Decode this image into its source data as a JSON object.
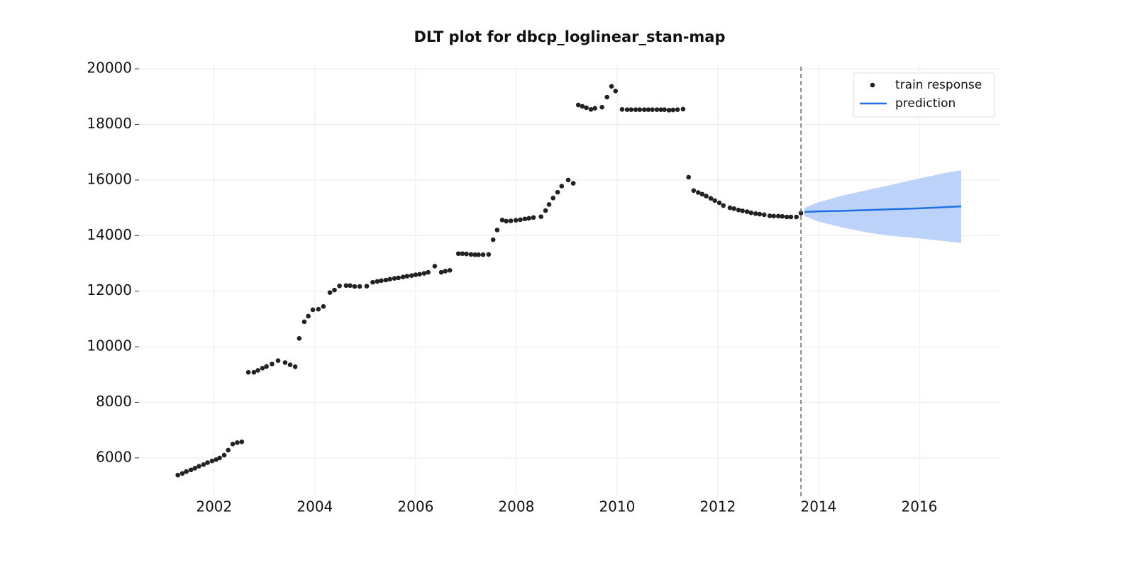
{
  "chart_data": {
    "type": "line",
    "title": "DLT plot for dbcp_loglinear_stan-map",
    "xlim": [
      2000.51,
      2017.62
    ],
    "ylim": [
      4620,
      20180
    ],
    "xticks": [
      2002,
      2004,
      2006,
      2008,
      2010,
      2012,
      2014,
      2016
    ],
    "yticks": [
      6000,
      8000,
      10000,
      12000,
      14000,
      16000,
      18000,
      20000
    ],
    "grid": true,
    "legend": "upper right",
    "vline": 2013.65,
    "series": [
      {
        "name": "train response",
        "type": "scatter",
        "color": "#222222",
        "x": [
          2001.28,
          2001.37,
          2001.45,
          2001.54,
          2001.62,
          2001.7,
          2001.79,
          2001.87,
          2001.96,
          2002.04,
          2002.11,
          2002.2,
          2002.28,
          2002.37,
          2002.46,
          2002.55,
          2002.68,
          2002.79,
          2002.87,
          2002.96,
          2003.04,
          2003.15,
          2003.27,
          2003.41,
          2003.51,
          2003.61,
          2003.69,
          2003.79,
          2003.87,
          2003.96,
          2004.07,
          2004.17,
          2004.3,
          2004.39,
          2004.49,
          2004.62,
          2004.7,
          2004.79,
          2004.89,
          2005.03,
          2005.15,
          2005.24,
          2005.32,
          2005.41,
          2005.49,
          2005.58,
          2005.66,
          2005.75,
          2005.83,
          2005.92,
          2006.0,
          2006.08,
          2006.17,
          2006.25,
          2006.38,
          2006.51,
          2006.59,
          2006.68,
          2006.85,
          2006.93,
          2007.01,
          2007.1,
          2007.18,
          2007.25,
          2007.34,
          2007.45,
          2007.54,
          2007.62,
          2007.72,
          2007.8,
          2007.89,
          2007.99,
          2008.08,
          2008.17,
          2008.25,
          2008.34,
          2008.49,
          2008.58,
          2008.65,
          2008.73,
          2008.82,
          2008.9,
          2009.03,
          2009.13,
          2009.23,
          2009.31,
          2009.39,
          2009.48,
          2009.56,
          2009.7,
          2009.8,
          2009.89,
          2009.97,
          2010.1,
          2010.2,
          2010.28,
          2010.37,
          2010.45,
          2010.54,
          2010.62,
          2010.7,
          2010.79,
          2010.87,
          2010.94,
          2011.03,
          2011.11,
          2011.2,
          2011.31,
          2011.42,
          2011.52,
          2011.61,
          2011.69,
          2011.77,
          2011.86,
          2011.94,
          2012.03,
          2012.11,
          2012.24,
          2012.32,
          2012.41,
          2012.49,
          2012.58,
          2012.66,
          2012.75,
          2012.83,
          2012.92,
          2013.03,
          2013.11,
          2013.2,
          2013.28,
          2013.37,
          2013.45,
          2013.56,
          2013.65
        ],
        "values": [
          5380,
          5440,
          5510,
          5570,
          5630,
          5700,
          5760,
          5830,
          5890,
          5940,
          6000,
          6100,
          6280,
          6500,
          6550,
          6580,
          9080,
          9080,
          9150,
          9230,
          9290,
          9380,
          9500,
          9430,
          9350,
          9280,
          10300,
          10900,
          11100,
          11330,
          11350,
          11450,
          11950,
          12040,
          12190,
          12200,
          12200,
          12170,
          12170,
          12180,
          12320,
          12350,
          12380,
          12400,
          12430,
          12460,
          12480,
          12510,
          12540,
          12560,
          12590,
          12610,
          12640,
          12680,
          12900,
          12680,
          12720,
          12750,
          13350,
          13350,
          13340,
          13320,
          13310,
          13310,
          13310,
          13320,
          13850,
          14200,
          14560,
          14520,
          14530,
          14550,
          14570,
          14600,
          14620,
          14650,
          14680,
          14900,
          15120,
          15350,
          15560,
          15780,
          16000,
          15880,
          18700,
          18650,
          18600,
          18540,
          18580,
          18620,
          18980,
          19370,
          19200,
          18540,
          18530,
          18530,
          18530,
          18530,
          18530,
          18530,
          18530,
          18530,
          18530,
          18530,
          18510,
          18520,
          18530,
          18550,
          16100,
          15620,
          15550,
          15490,
          15420,
          15340,
          15260,
          15180,
          15080,
          15000,
          14970,
          14920,
          14890,
          14860,
          14820,
          14790,
          14770,
          14750,
          14710,
          14700,
          14700,
          14690,
          14670,
          14670,
          14670,
          14810
        ]
      },
      {
        "name": "prediction",
        "type": "line",
        "color": "#1f6fe5",
        "band_color": "#bcd2f8",
        "x": [
          2013.72,
          2014.0,
          2014.5,
          2015.0,
          2015.5,
          2016.0,
          2016.5,
          2016.83
        ],
        "values": [
          14850,
          14870,
          14890,
          14920,
          14950,
          14980,
          15020,
          15050
        ],
        "upper": [
          15000,
          15200,
          15450,
          15650,
          15850,
          16050,
          16250,
          16350
        ],
        "lower": [
          14700,
          14500,
          14280,
          14100,
          13980,
          13900,
          13800,
          13740
        ]
      }
    ]
  }
}
